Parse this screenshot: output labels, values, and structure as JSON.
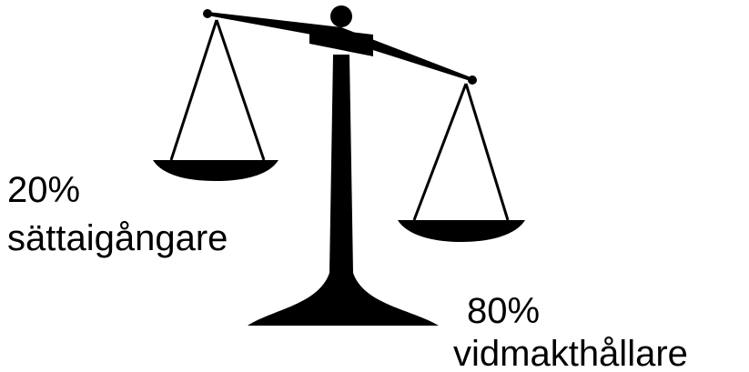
{
  "labels": {
    "left": {
      "percent": "20%",
      "role": "sättaigångare"
    },
    "right": {
      "percent": "80%",
      "role": "vidmakthållare"
    }
  }
}
